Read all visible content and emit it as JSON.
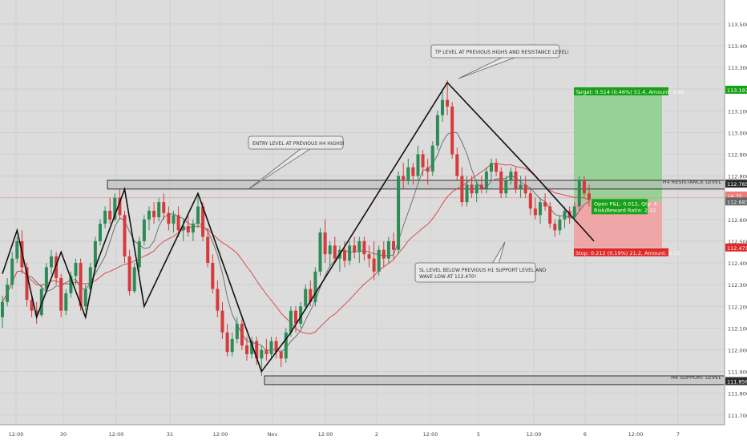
{
  "chart_data": {
    "type": "candlestick",
    "ylim": [
      111.655,
      113.61
    ],
    "y_ticks": [
      111.7,
      111.8,
      111.9,
      112.0,
      112.1,
      112.2,
      112.3,
      112.4,
      112.5,
      112.6,
      112.7,
      112.8,
      112.9,
      113.0,
      113.1,
      113.2,
      113.3,
      113.4,
      113.5
    ],
    "x_ticks": [
      "12:00",
      "30",
      "12:00",
      "31",
      "12:00",
      "Nov",
      "12:00",
      "2",
      "12:00",
      "5",
      "12:00",
      "6",
      "12:00",
      "7"
    ],
    "price_labels": {
      "target": "113.197",
      "resistance": "112.765",
      "countdown": "14:35",
      "current": "112.683",
      "stop": "112.471",
      "support": "111.856"
    },
    "levels": {
      "h4_resistance": {
        "label": "H4 RESISTANCE LEVEL",
        "low": 112.74,
        "high": 112.78
      },
      "h4_support": {
        "label": "H4 SUPPORT LEVEL",
        "low": 111.84,
        "high": 111.88
      }
    },
    "position": {
      "entry": 112.683,
      "target_price": 113.197,
      "stop_price": 112.471,
      "target_text": "Target: 0.514 (0.46%) 51.4, Amount: 3.06",
      "stop_text": "Stop: 0.212 (0.19%) 21.2, Amount: 0.15",
      "open_pnl_text": "Open P&L: 0.012, Qty: 4",
      "risk_reward_text": "Risk/Reward Ratio: 2.42"
    },
    "annotations": {
      "tp_note": "TP LEVEL AT PREVIOUS HIGHS AND RESISTANCE LEVEL!",
      "entry_note": "ENTRY LEVEL AT PREVIOUS H4 HIGHS!",
      "sl_note_line1": "SL LEVEL BELOW PREVIOUS H1 SUPPORT LEVEL AND",
      "sl_note_line2": "WAVE LOW AT 112.470!"
    },
    "wave_path": [
      [
        0,
        112.35
      ],
      [
        3,
        112.55
      ],
      [
        7,
        112.15
      ],
      [
        12,
        112.45
      ],
      [
        17,
        112.15
      ],
      [
        19,
        112.38
      ],
      [
        25,
        112.74
      ],
      [
        29,
        112.2
      ],
      [
        40,
        112.72
      ],
      [
        53,
        111.9
      ],
      [
        59,
        112.08
      ],
      [
        91,
        113.23
      ],
      [
        109,
        112.8
      ],
      [
        121,
        112.5
      ]
    ],
    "candles": [
      [
        112.15,
        112.25,
        112.1,
        112.22
      ],
      [
        112.22,
        112.33,
        112.2,
        112.3
      ],
      [
        112.3,
        112.45,
        112.28,
        112.42
      ],
      [
        112.42,
        112.52,
        112.4,
        112.5
      ],
      [
        112.5,
        112.55,
        112.35,
        112.38
      ],
      [
        112.38,
        112.4,
        112.2,
        112.23
      ],
      [
        112.23,
        112.25,
        112.15,
        112.18
      ],
      [
        112.18,
        112.22,
        112.12,
        112.16
      ],
      [
        112.16,
        112.3,
        112.15,
        112.28
      ],
      [
        112.28,
        112.4,
        112.26,
        112.38
      ],
      [
        112.38,
        112.46,
        112.35,
        112.43
      ],
      [
        112.43,
        112.45,
        112.3,
        112.33
      ],
      [
        112.33,
        112.35,
        112.15,
        112.18
      ],
      [
        112.18,
        112.28,
        112.16,
        112.26
      ],
      [
        112.26,
        112.36,
        112.24,
        112.34
      ],
      [
        112.34,
        112.42,
        112.3,
        112.4
      ],
      [
        112.4,
        112.42,
        112.18,
        112.2
      ],
      [
        112.2,
        112.3,
        112.18,
        112.28
      ],
      [
        112.28,
        112.4,
        112.26,
        112.38
      ],
      [
        112.38,
        112.52,
        112.36,
        112.5
      ],
      [
        112.5,
        112.6,
        112.48,
        112.58
      ],
      [
        112.58,
        112.66,
        112.56,
        112.64
      ],
      [
        112.64,
        112.7,
        112.58,
        112.6
      ],
      [
        112.6,
        112.72,
        112.59,
        112.7
      ],
      [
        112.7,
        112.74,
        112.6,
        112.62
      ],
      [
        112.62,
        112.64,
        112.4,
        112.43
      ],
      [
        112.43,
        112.46,
        112.25,
        112.27
      ],
      [
        112.27,
        112.4,
        112.26,
        112.38
      ],
      [
        112.38,
        112.52,
        112.36,
        112.5
      ],
      [
        112.5,
        112.62,
        112.48,
        112.6
      ],
      [
        112.6,
        112.66,
        112.55,
        112.64
      ],
      [
        112.64,
        112.68,
        112.58,
        112.61
      ],
      [
        112.61,
        112.7,
        112.59,
        112.68
      ],
      [
        112.68,
        112.72,
        112.6,
        112.63
      ],
      [
        112.63,
        112.66,
        112.55,
        112.58
      ],
      [
        112.58,
        112.64,
        112.54,
        112.62
      ],
      [
        112.62,
        112.66,
        112.52,
        112.55
      ],
      [
        112.55,
        112.6,
        112.5,
        112.57
      ],
      [
        112.57,
        112.62,
        112.52,
        112.54
      ],
      [
        112.54,
        112.6,
        112.5,
        112.58
      ],
      [
        112.58,
        112.72,
        112.56,
        112.66
      ],
      [
        112.66,
        112.68,
        112.5,
        112.52
      ],
      [
        112.52,
        112.56,
        112.38,
        112.4
      ],
      [
        112.4,
        112.44,
        112.26,
        112.28
      ],
      [
        112.28,
        112.32,
        112.15,
        112.18
      ],
      [
        112.18,
        112.22,
        112.05,
        112.08
      ],
      [
        112.08,
        112.12,
        111.97,
        111.99
      ],
      [
        111.99,
        112.08,
        111.97,
        112.05
      ],
      [
        112.05,
        112.15,
        112.03,
        112.12
      ],
      [
        112.12,
        112.14,
        112.0,
        112.02
      ],
      [
        112.02,
        112.06,
        111.95,
        111.98
      ],
      [
        111.98,
        112.06,
        111.96,
        112.04
      ],
      [
        112.04,
        112.06,
        111.93,
        111.96
      ],
      [
        111.96,
        112.02,
        111.88,
        112.0
      ],
      [
        112.0,
        112.05,
        111.95,
        111.98
      ],
      [
        111.98,
        112.06,
        111.96,
        112.04
      ],
      [
        112.04,
        112.06,
        111.96,
        111.99
      ],
      [
        111.99,
        112.0,
        111.92,
        111.96
      ],
      [
        111.96,
        112.1,
        111.94,
        112.08
      ],
      [
        112.08,
        112.2,
        112.06,
        112.18
      ],
      [
        112.18,
        112.2,
        112.08,
        112.12
      ],
      [
        112.12,
        112.22,
        112.1,
        112.2
      ],
      [
        112.2,
        112.3,
        112.18,
        112.28
      ],
      [
        112.28,
        112.32,
        112.2,
        112.22
      ],
      [
        112.22,
        112.38,
        112.2,
        112.36
      ],
      [
        112.36,
        112.56,
        112.34,
        112.54
      ],
      [
        112.54,
        112.6,
        112.4,
        112.44
      ],
      [
        112.44,
        112.5,
        112.38,
        112.48
      ],
      [
        112.48,
        112.52,
        112.4,
        112.42
      ],
      [
        112.42,
        112.48,
        112.36,
        112.46
      ],
      [
        112.46,
        112.5,
        112.38,
        112.41
      ],
      [
        112.41,
        112.5,
        112.39,
        112.48
      ],
      [
        112.48,
        112.52,
        112.42,
        112.45
      ],
      [
        112.45,
        112.52,
        112.4,
        112.5
      ],
      [
        112.5,
        112.52,
        112.41,
        112.44
      ],
      [
        112.44,
        112.48,
        112.38,
        112.42
      ],
      [
        112.42,
        112.5,
        112.32,
        112.36
      ],
      [
        112.36,
        112.48,
        112.34,
        112.46
      ],
      [
        112.46,
        112.5,
        112.38,
        112.42
      ],
      [
        112.42,
        112.52,
        112.4,
        112.5
      ],
      [
        112.5,
        112.54,
        112.42,
        112.46
      ],
      [
        112.46,
        112.82,
        112.44,
        112.8
      ],
      [
        112.8,
        112.86,
        112.74,
        112.78
      ],
      [
        112.78,
        112.88,
        112.76,
        112.84
      ],
      [
        112.84,
        112.86,
        112.76,
        112.8
      ],
      [
        112.8,
        112.94,
        112.78,
        112.9
      ],
      [
        112.9,
        112.92,
        112.8,
        112.84
      ],
      [
        112.84,
        112.88,
        112.76,
        112.82
      ],
      [
        112.82,
        112.96,
        112.8,
        112.94
      ],
      [
        112.94,
        113.1,
        112.92,
        113.08
      ],
      [
        113.08,
        113.2,
        113.05,
        113.15
      ],
      [
        113.15,
        113.24,
        113.08,
        113.12
      ],
      [
        113.12,
        113.14,
        112.88,
        112.9
      ],
      [
        112.9,
        112.93,
        112.78,
        112.8
      ],
      [
        112.8,
        112.84,
        112.66,
        112.68
      ],
      [
        112.68,
        112.8,
        112.66,
        112.76
      ],
      [
        112.76,
        112.8,
        112.7,
        112.72
      ],
      [
        112.72,
        112.78,
        112.68,
        112.76
      ],
      [
        112.76,
        112.8,
        112.72,
        112.74
      ],
      [
        112.74,
        112.84,
        112.72,
        112.82
      ],
      [
        112.82,
        112.88,
        112.78,
        112.86
      ],
      [
        112.86,
        112.88,
        112.8,
        112.82
      ],
      [
        112.82,
        112.84,
        112.7,
        112.72
      ],
      [
        112.72,
        112.8,
        112.7,
        112.78
      ],
      [
        112.78,
        112.84,
        112.76,
        112.82
      ],
      [
        112.82,
        112.84,
        112.72,
        112.74
      ],
      [
        112.74,
        112.8,
        112.7,
        112.76
      ],
      [
        112.76,
        112.8,
        112.7,
        112.72
      ],
      [
        112.72,
        112.74,
        112.62,
        112.65
      ],
      [
        112.65,
        112.7,
        112.6,
        112.62
      ],
      [
        112.62,
        112.7,
        112.58,
        112.68
      ],
      [
        112.68,
        112.72,
        112.64,
        112.66
      ],
      [
        112.66,
        112.68,
        112.56,
        112.58
      ],
      [
        112.58,
        112.6,
        112.52,
        112.55
      ],
      [
        112.55,
        112.62,
        112.53,
        112.6
      ],
      [
        112.6,
        112.66,
        112.56,
        112.64
      ],
      [
        112.64,
        112.66,
        112.58,
        112.61
      ],
      [
        112.61,
        112.68,
        112.59,
        112.66
      ],
      [
        112.66,
        112.8,
        112.64,
        112.78
      ],
      [
        112.78,
        112.8,
        112.7,
        112.72
      ],
      [
        112.72,
        112.76,
        112.66,
        112.69
      ]
    ],
    "colors": {
      "up_candle": "#2e8b57",
      "down_candle": "#d63a3a",
      "fast_ma": "#666666",
      "slow_ma": "#e03b3b",
      "profit_zone": "#8fcf8f",
      "loss_zone": "#f0a0a0",
      "target_tag": "#17a117",
      "stop_tag": "#e02828",
      "axis_tag": "#2b2b2b"
    }
  }
}
